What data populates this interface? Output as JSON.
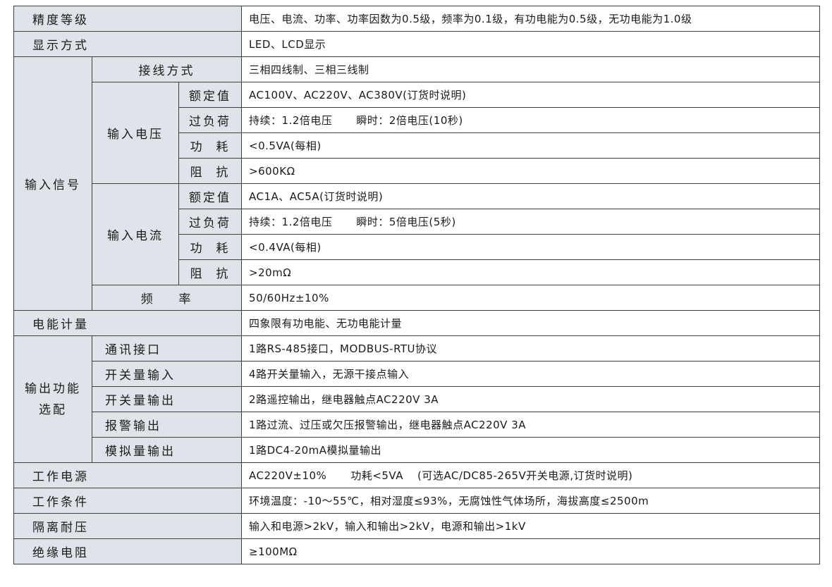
{
  "rows": {
    "accuracy": {
      "label": "精度等级",
      "value": "电压、电流、功率、功率因数为0.5级，频率为0.1级，有功电能为0.5级，无功电能为1.0级"
    },
    "display": {
      "label": "显示方式",
      "value": "LED、LCD显示"
    },
    "input_signal": {
      "label": "输入信号",
      "wiring": {
        "label": "接线方式",
        "value": "三相四线制、三相三线制"
      },
      "voltage": {
        "label": "输入电压",
        "rated": {
          "label": "额定值",
          "value": "AC100V、AC220V、AC380V(订货时说明)"
        },
        "overload": {
          "label": "过负荷",
          "value": "持续：1.2倍电压",
          "value2": "瞬时：2倍电压(10秒)"
        },
        "power": {
          "label": "功  耗",
          "value": "<0.5VA(每相)"
        },
        "impedance": {
          "label": "阻  抗",
          "value": ">600KΩ"
        }
      },
      "current": {
        "label": "输入电流",
        "rated": {
          "label": "额定值",
          "value": "AC1A、AC5A(订货时说明)"
        },
        "overload": {
          "label": "过负荷",
          "value": "持续：1.2倍电压",
          "value2": "瞬时：5倍电压(5秒)"
        },
        "power": {
          "label": "功  耗",
          "value": "<0.4VA(每相)"
        },
        "impedance": {
          "label": "阻  抗",
          "value": ">20mΩ"
        }
      },
      "frequency": {
        "label": "频    率",
        "value": "50/60Hz±10%"
      }
    },
    "energy": {
      "label": "电能计量",
      "value": "四象限有功电能、无功电能计量"
    },
    "output": {
      "label": "输出功能选配",
      "items": [
        {
          "label": "通讯接口",
          "value": "1路RS-485接口，MODBUS-RTU协议"
        },
        {
          "label": "开关量输入",
          "value": "4路开关量输入，无源干接点输入"
        },
        {
          "label": "开关量输出",
          "value": "2路遥控输出，继电器触点AC220V 3A"
        },
        {
          "label": "报警输出",
          "value": "1路过流、过压或欠压报警输出，继电器触点AC220V 3A"
        },
        {
          "label": "模拟量输出",
          "value": "1路DC4-20mA模拟量输出"
        }
      ]
    },
    "power_supply": {
      "label": "工作电源",
      "value": "AC220V±10%",
      "value2": "功耗<5VA",
      "value3": "(可选AC/DC85-265V开关电源,订货时说明)"
    },
    "conditions": {
      "label": "工作条件",
      "value": "环境温度：-10～55℃，相对湿度≤93%，无腐蚀性气体场所，海拔高度≤2500m"
    },
    "isolation": {
      "label": "隔离耐压",
      "value": "输入和电源>2kV，输入和输出>2kV，电源和输出>1kV"
    },
    "insulation": {
      "label": "绝缘电阻",
      "value": "≥100MΩ"
    }
  }
}
